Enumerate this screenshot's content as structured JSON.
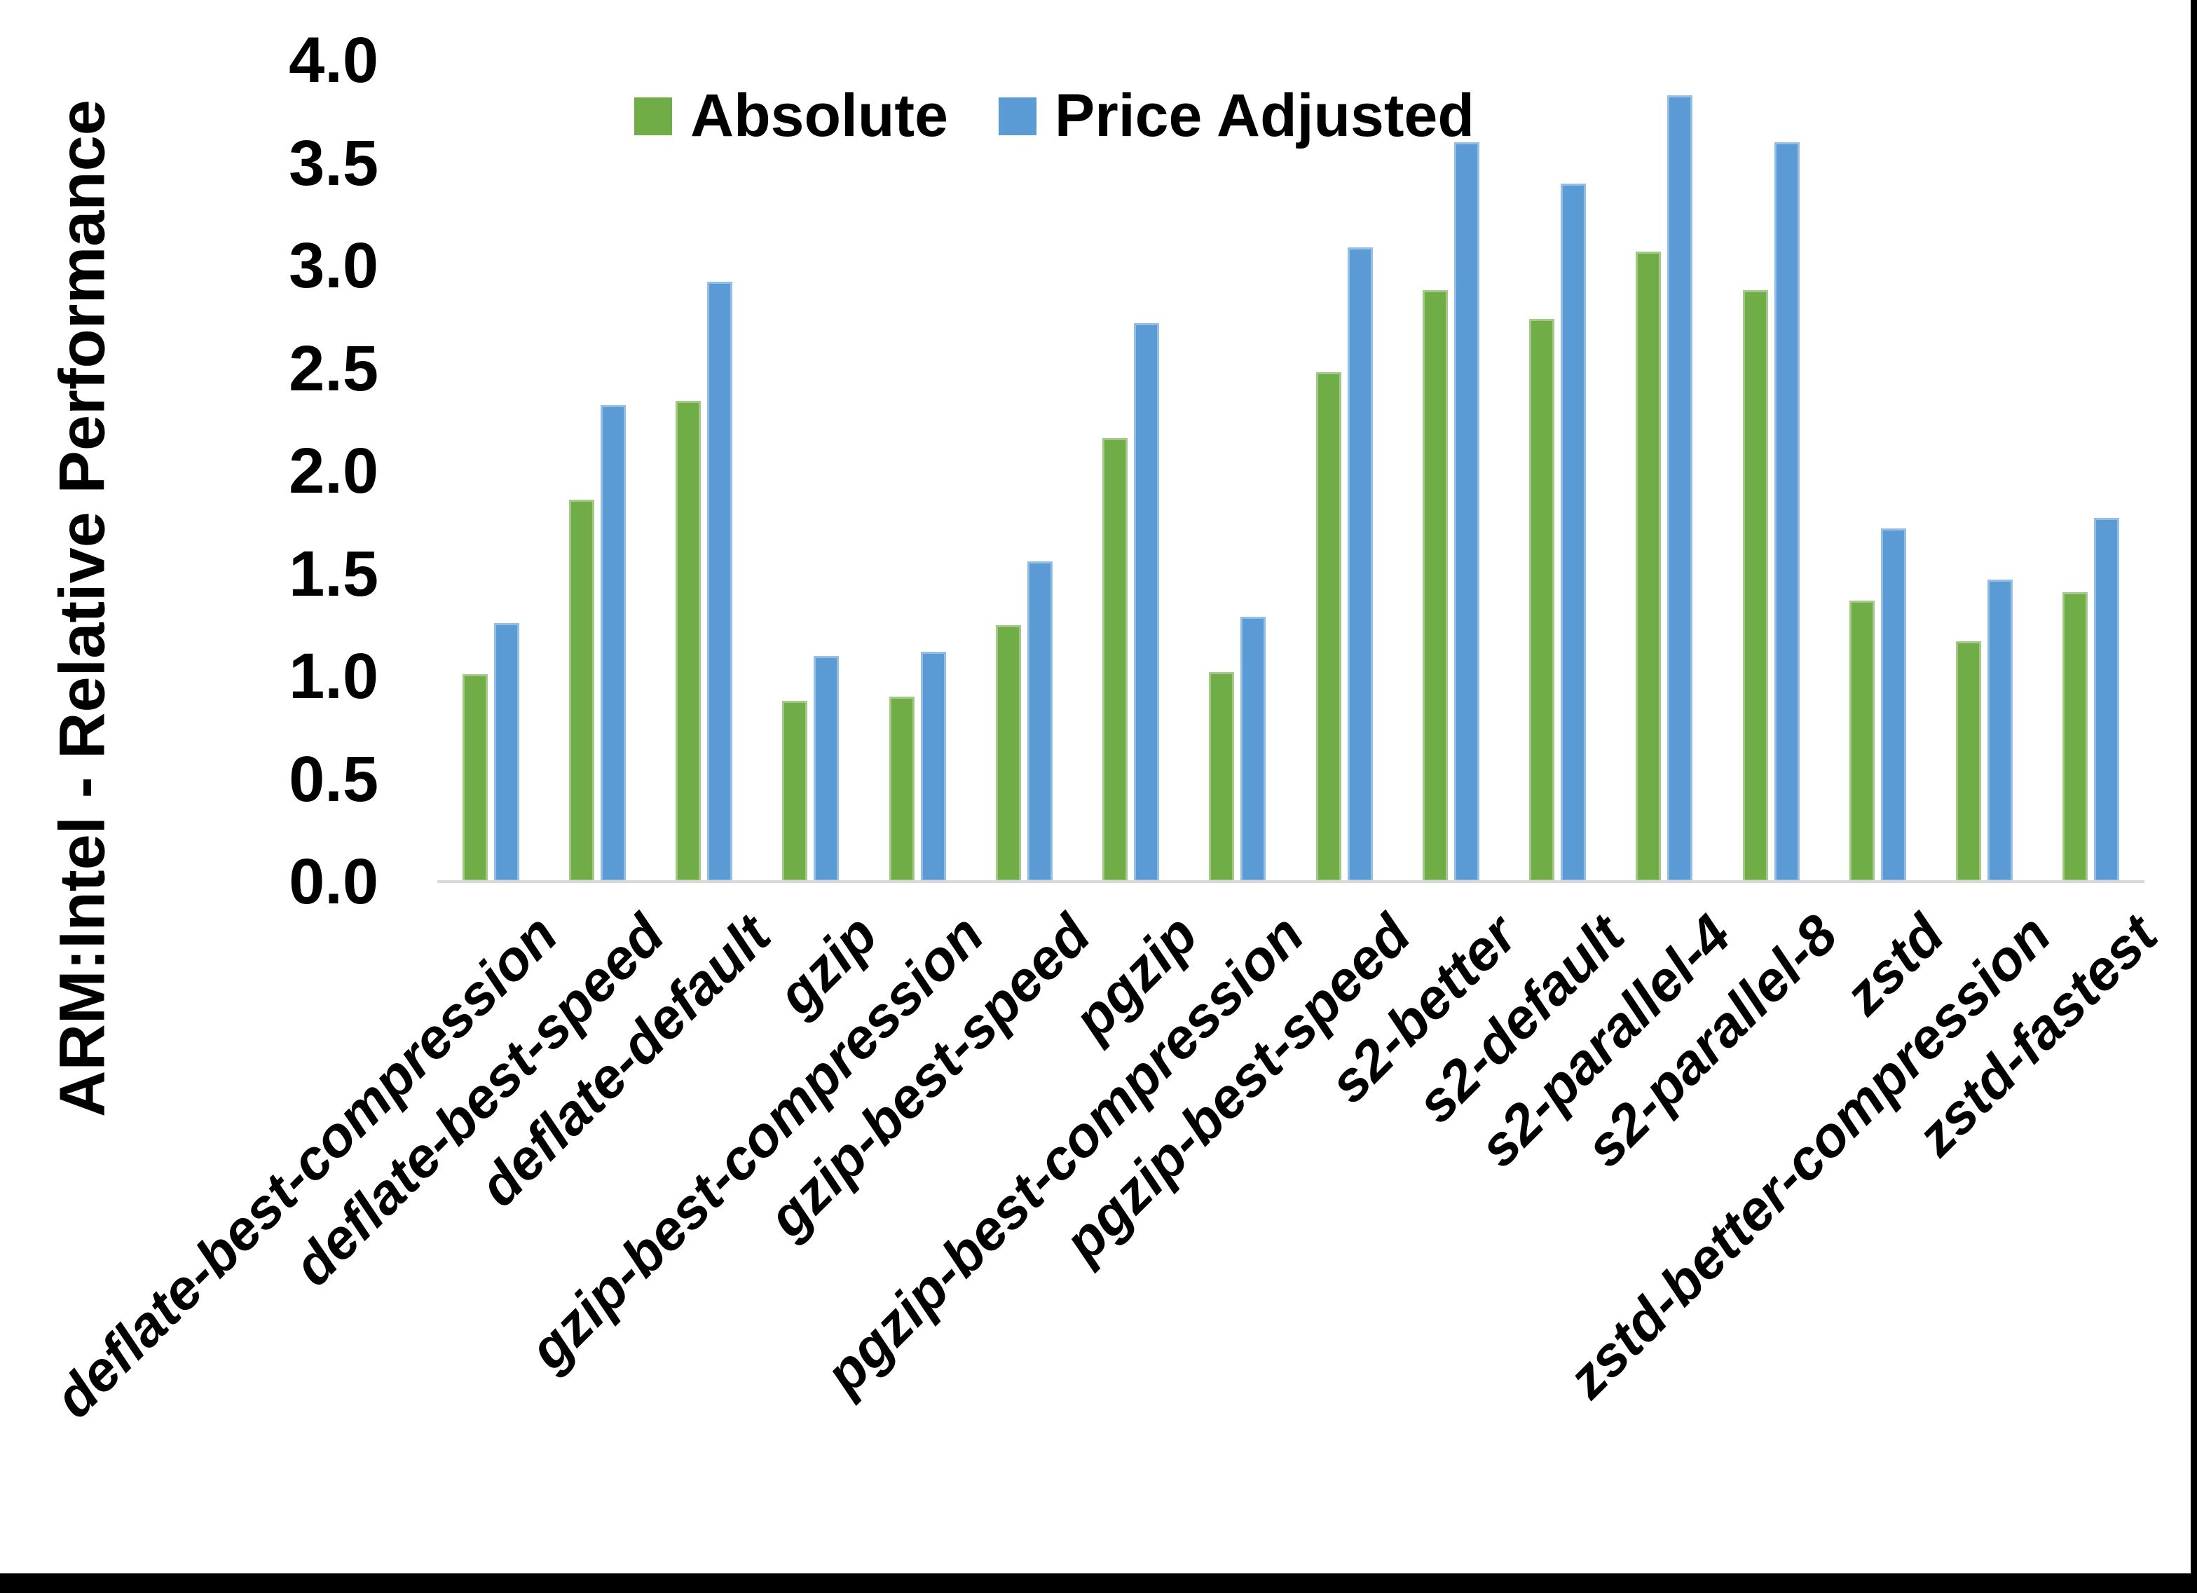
{
  "chart_data": {
    "type": "bar",
    "title": "",
    "xlabel": "",
    "ylabel": "ARM:Intel - Relative Performance",
    "ylim": [
      0.0,
      4.0
    ],
    "ytick_step": 0.5,
    "ytick_labels": [
      "0.0",
      "0.5",
      "1.0",
      "1.5",
      "2.0",
      "2.5",
      "3.0",
      "3.5",
      "4.0"
    ],
    "grid": false,
    "legend_position": "top-center",
    "categories": [
      "deflate-best-compression",
      "deflate-best-speed",
      "deflate-default",
      "gzip",
      "gzip-best-compression",
      "gzip-best-speed",
      "pgzip",
      "pgzip-best-compression",
      "pgzip-best-speed",
      "s2-better",
      "s2-default",
      "s2-parallel-4",
      "s2-parallel-8",
      "zstd",
      "zstd-better-compression",
      "zstd-fastest"
    ],
    "series": [
      {
        "name": "Absolute",
        "color": "#70AD47",
        "values": [
          1.01,
          1.86,
          2.34,
          0.88,
          0.9,
          1.25,
          2.16,
          1.02,
          2.48,
          2.88,
          2.74,
          3.07,
          2.88,
          1.37,
          1.17,
          1.41
        ]
      },
      {
        "name": "Price Adjusted",
        "color": "#5B9BD5",
        "values": [
          1.26,
          2.32,
          2.92,
          1.1,
          1.12,
          1.56,
          2.72,
          1.29,
          3.09,
          3.6,
          3.4,
          3.83,
          3.6,
          1.72,
          1.47,
          1.77
        ]
      }
    ]
  },
  "colors": {
    "axis_line": "#D9D9D9",
    "text": "#000000",
    "edge_frame": "#000000",
    "background": "#FFFFFF"
  }
}
